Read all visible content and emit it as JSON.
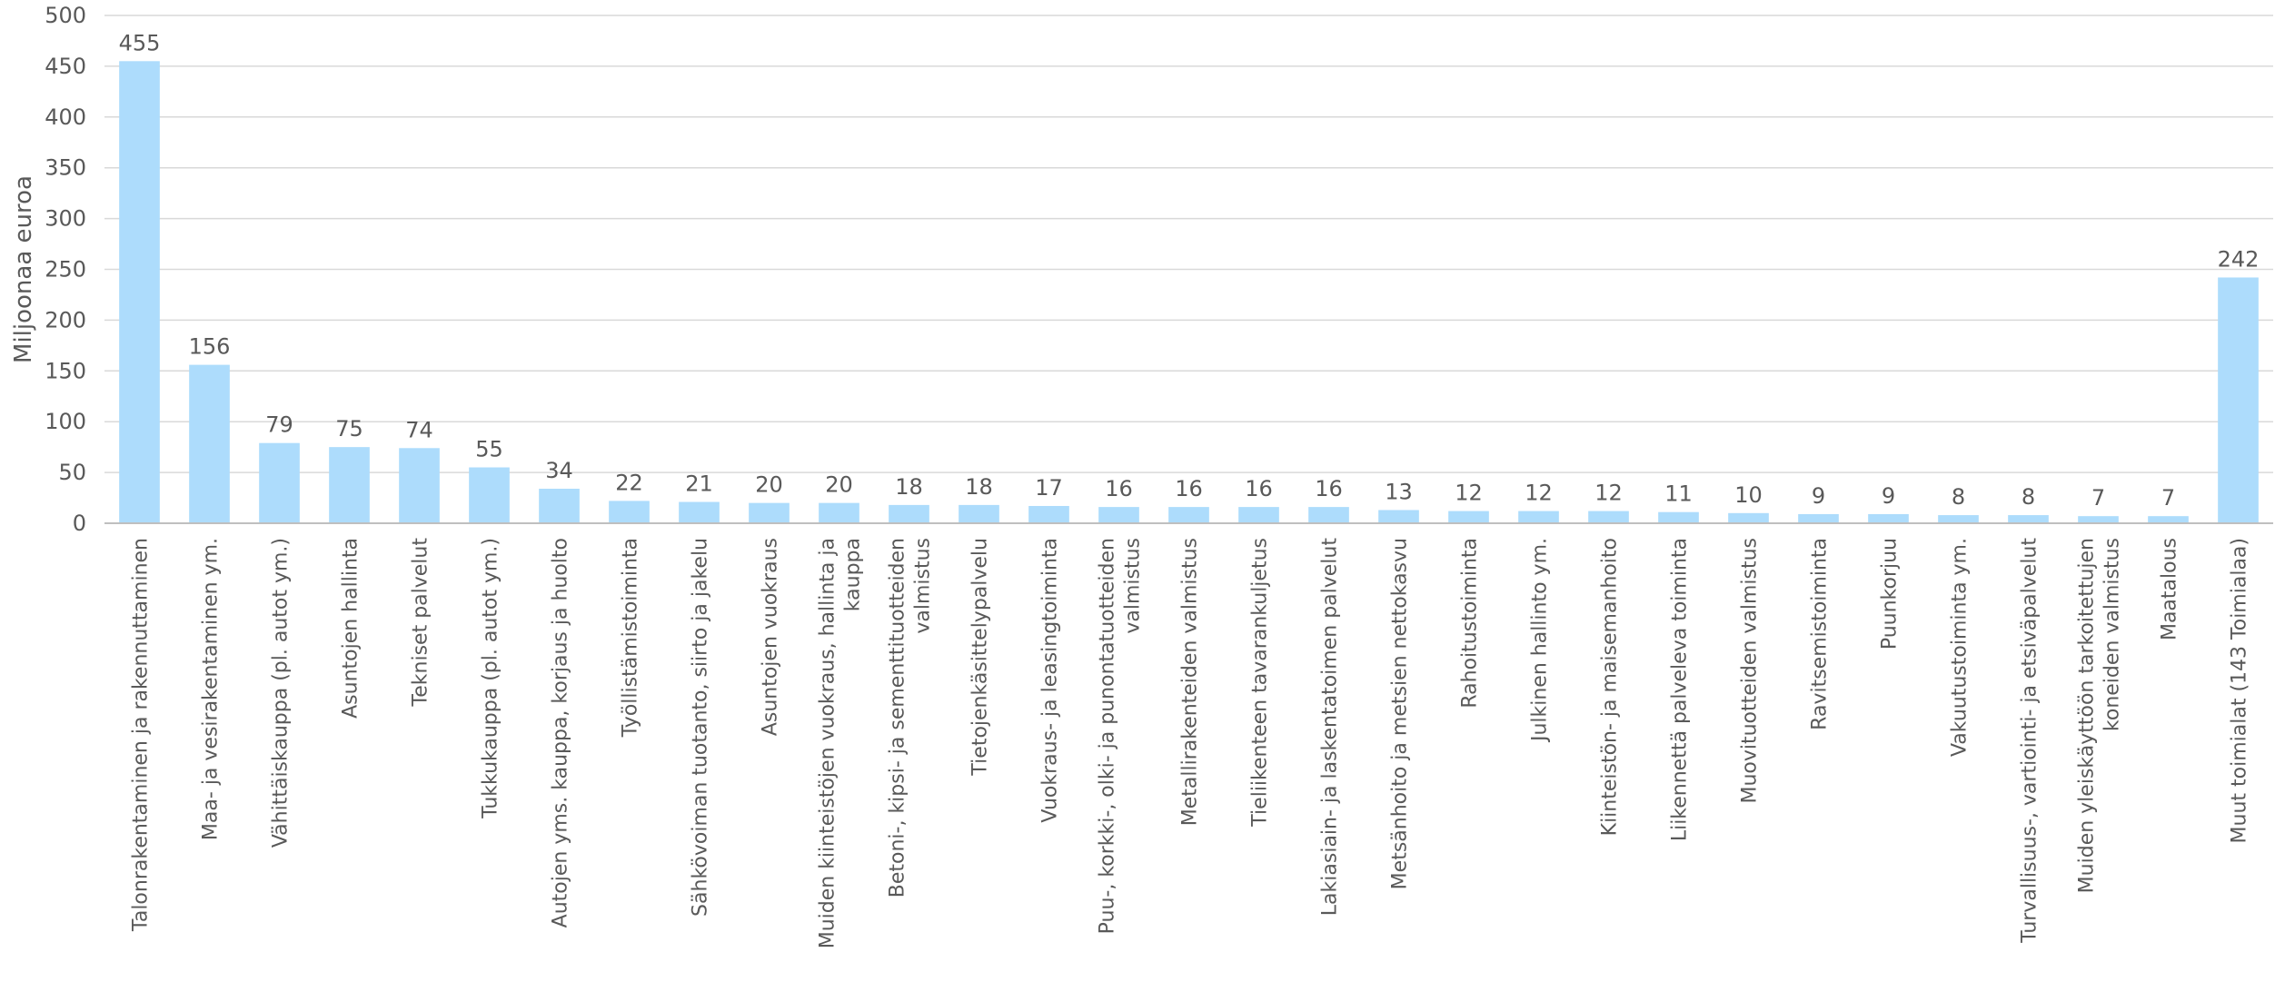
{
  "chart_data": {
    "type": "bar",
    "title": "",
    "xlabel": "",
    "ylabel": "Miljoonaa euroa",
    "ylim": [
      0,
      500
    ],
    "yticks": [
      0,
      50,
      100,
      150,
      200,
      250,
      300,
      350,
      400,
      450,
      500
    ],
    "grid": true,
    "legend": "none",
    "colors": {
      "bar": "#ADDCFC",
      "grid": "#D9D9D9",
      "axis": "#BFBFBF",
      "text": "#595959"
    },
    "categories": [
      [
        "Talonrakentaminen ja rakennuttaminen"
      ],
      [
        "Maa- ja vesirakentaminen ym."
      ],
      [
        "Vähittäiskauppa (pl. autot ym.)"
      ],
      [
        "Asuntojen hallinta"
      ],
      [
        "Tekniset palvelut"
      ],
      [
        "Tukkukauppa (pl. autot ym.)"
      ],
      [
        "Autojen yms. kauppa, korjaus ja huolto"
      ],
      [
        "Työllistämistoiminta"
      ],
      [
        "Sähkövoiman tuotanto, siirto ja jakelu"
      ],
      [
        "Asuntojen vuokraus"
      ],
      [
        "Muiden kiinteistöjen vuokraus, hallinta ja",
        "kauppa"
      ],
      [
        "Betoni-, kipsi- ja sementtituotteiden",
        "valmistus"
      ],
      [
        "Tietojenkäsittelypalvelu"
      ],
      [
        "Vuokraus- ja leasingtoiminta"
      ],
      [
        "Puu-, korkki-, olki- ja punontatuotteiden",
        "valmistus"
      ],
      [
        "Metallirakenteiden valmistus"
      ],
      [
        "Tieliikenteen tavarankuljetus"
      ],
      [
        "Lakiasiain- ja laskentatoimen palvelut"
      ],
      [
        "Metsänhoito ja metsien nettokasvu"
      ],
      [
        "Rahoitustoiminta"
      ],
      [
        "Julkinen hallinto ym."
      ],
      [
        "Kiinteistön- ja maisemanhoito"
      ],
      [
        "Liikennettä palveleva toiminta"
      ],
      [
        "Muovituotteiden valmistus"
      ],
      [
        "Ravitsemistoiminta"
      ],
      [
        "Puunkorjuu"
      ],
      [
        "Vakuutustoiminta ym."
      ],
      [
        "Turvallisuus-, vartiointi- ja etsiväpalvelut"
      ],
      [
        "Muiden yleiskäyttöön tarkoitettujen",
        "koneiden valmistus"
      ],
      [
        "Maatalous"
      ],
      [
        "Muut toimialat (143 Toimialaa)"
      ]
    ],
    "values": [
      455,
      156,
      79,
      75,
      74,
      55,
      34,
      22,
      21,
      20,
      20,
      18,
      18,
      17,
      16,
      16,
      16,
      16,
      13,
      12,
      12,
      12,
      11,
      10,
      9,
      9,
      8,
      8,
      7,
      7,
      242
    ]
  }
}
